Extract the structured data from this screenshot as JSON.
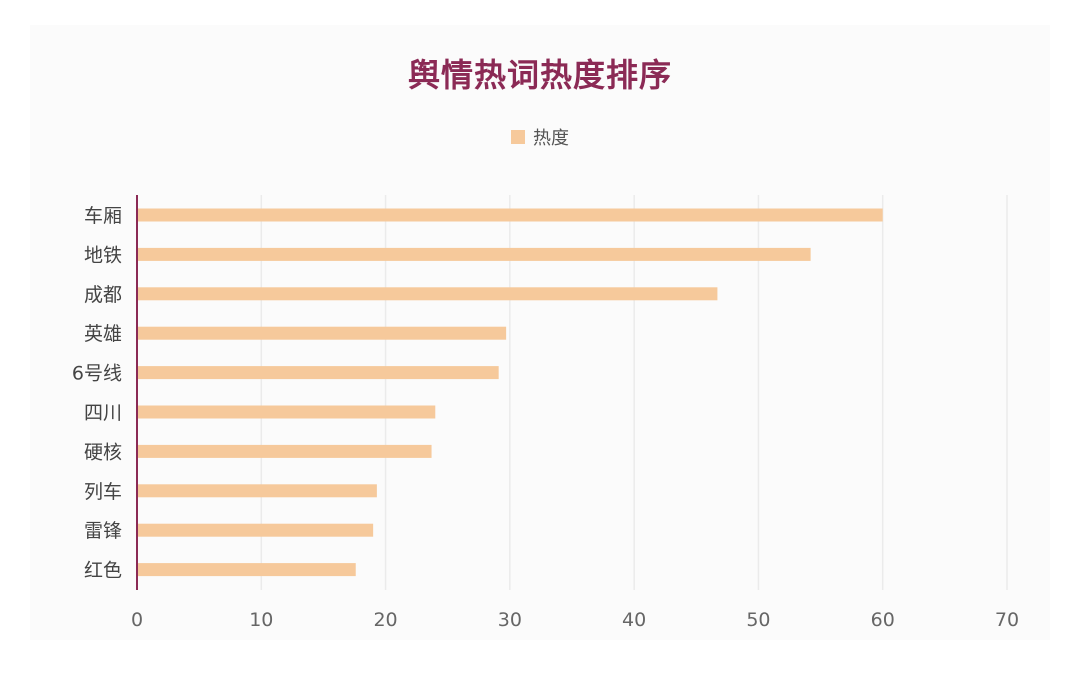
{
  "chart_data": {
    "type": "bar",
    "orientation": "horizontal",
    "title": "舆情热词热度排序",
    "categories": [
      "车厢",
      "地铁",
      "成都",
      "英雄",
      "6号线",
      "四川",
      "硬核",
      "列车",
      "雷锋",
      "红色"
    ],
    "series": [
      {
        "name": "热度",
        "values": [
          60,
          54.2,
          46.7,
          29.7,
          29.1,
          24.0,
          23.7,
          19.3,
          19.0,
          17.6
        ]
      }
    ],
    "xlim": [
      0,
      70
    ],
    "xticks": [
      "0",
      "10",
      "20",
      "30",
      "40",
      "50",
      "60",
      "70"
    ],
    "grid": "vertical",
    "legend_position": "top-center",
    "colors": {
      "bar": "#f6c99b",
      "axis": "#8b2a55",
      "grid": "#ebebeb",
      "title": "#8b2a55"
    }
  }
}
